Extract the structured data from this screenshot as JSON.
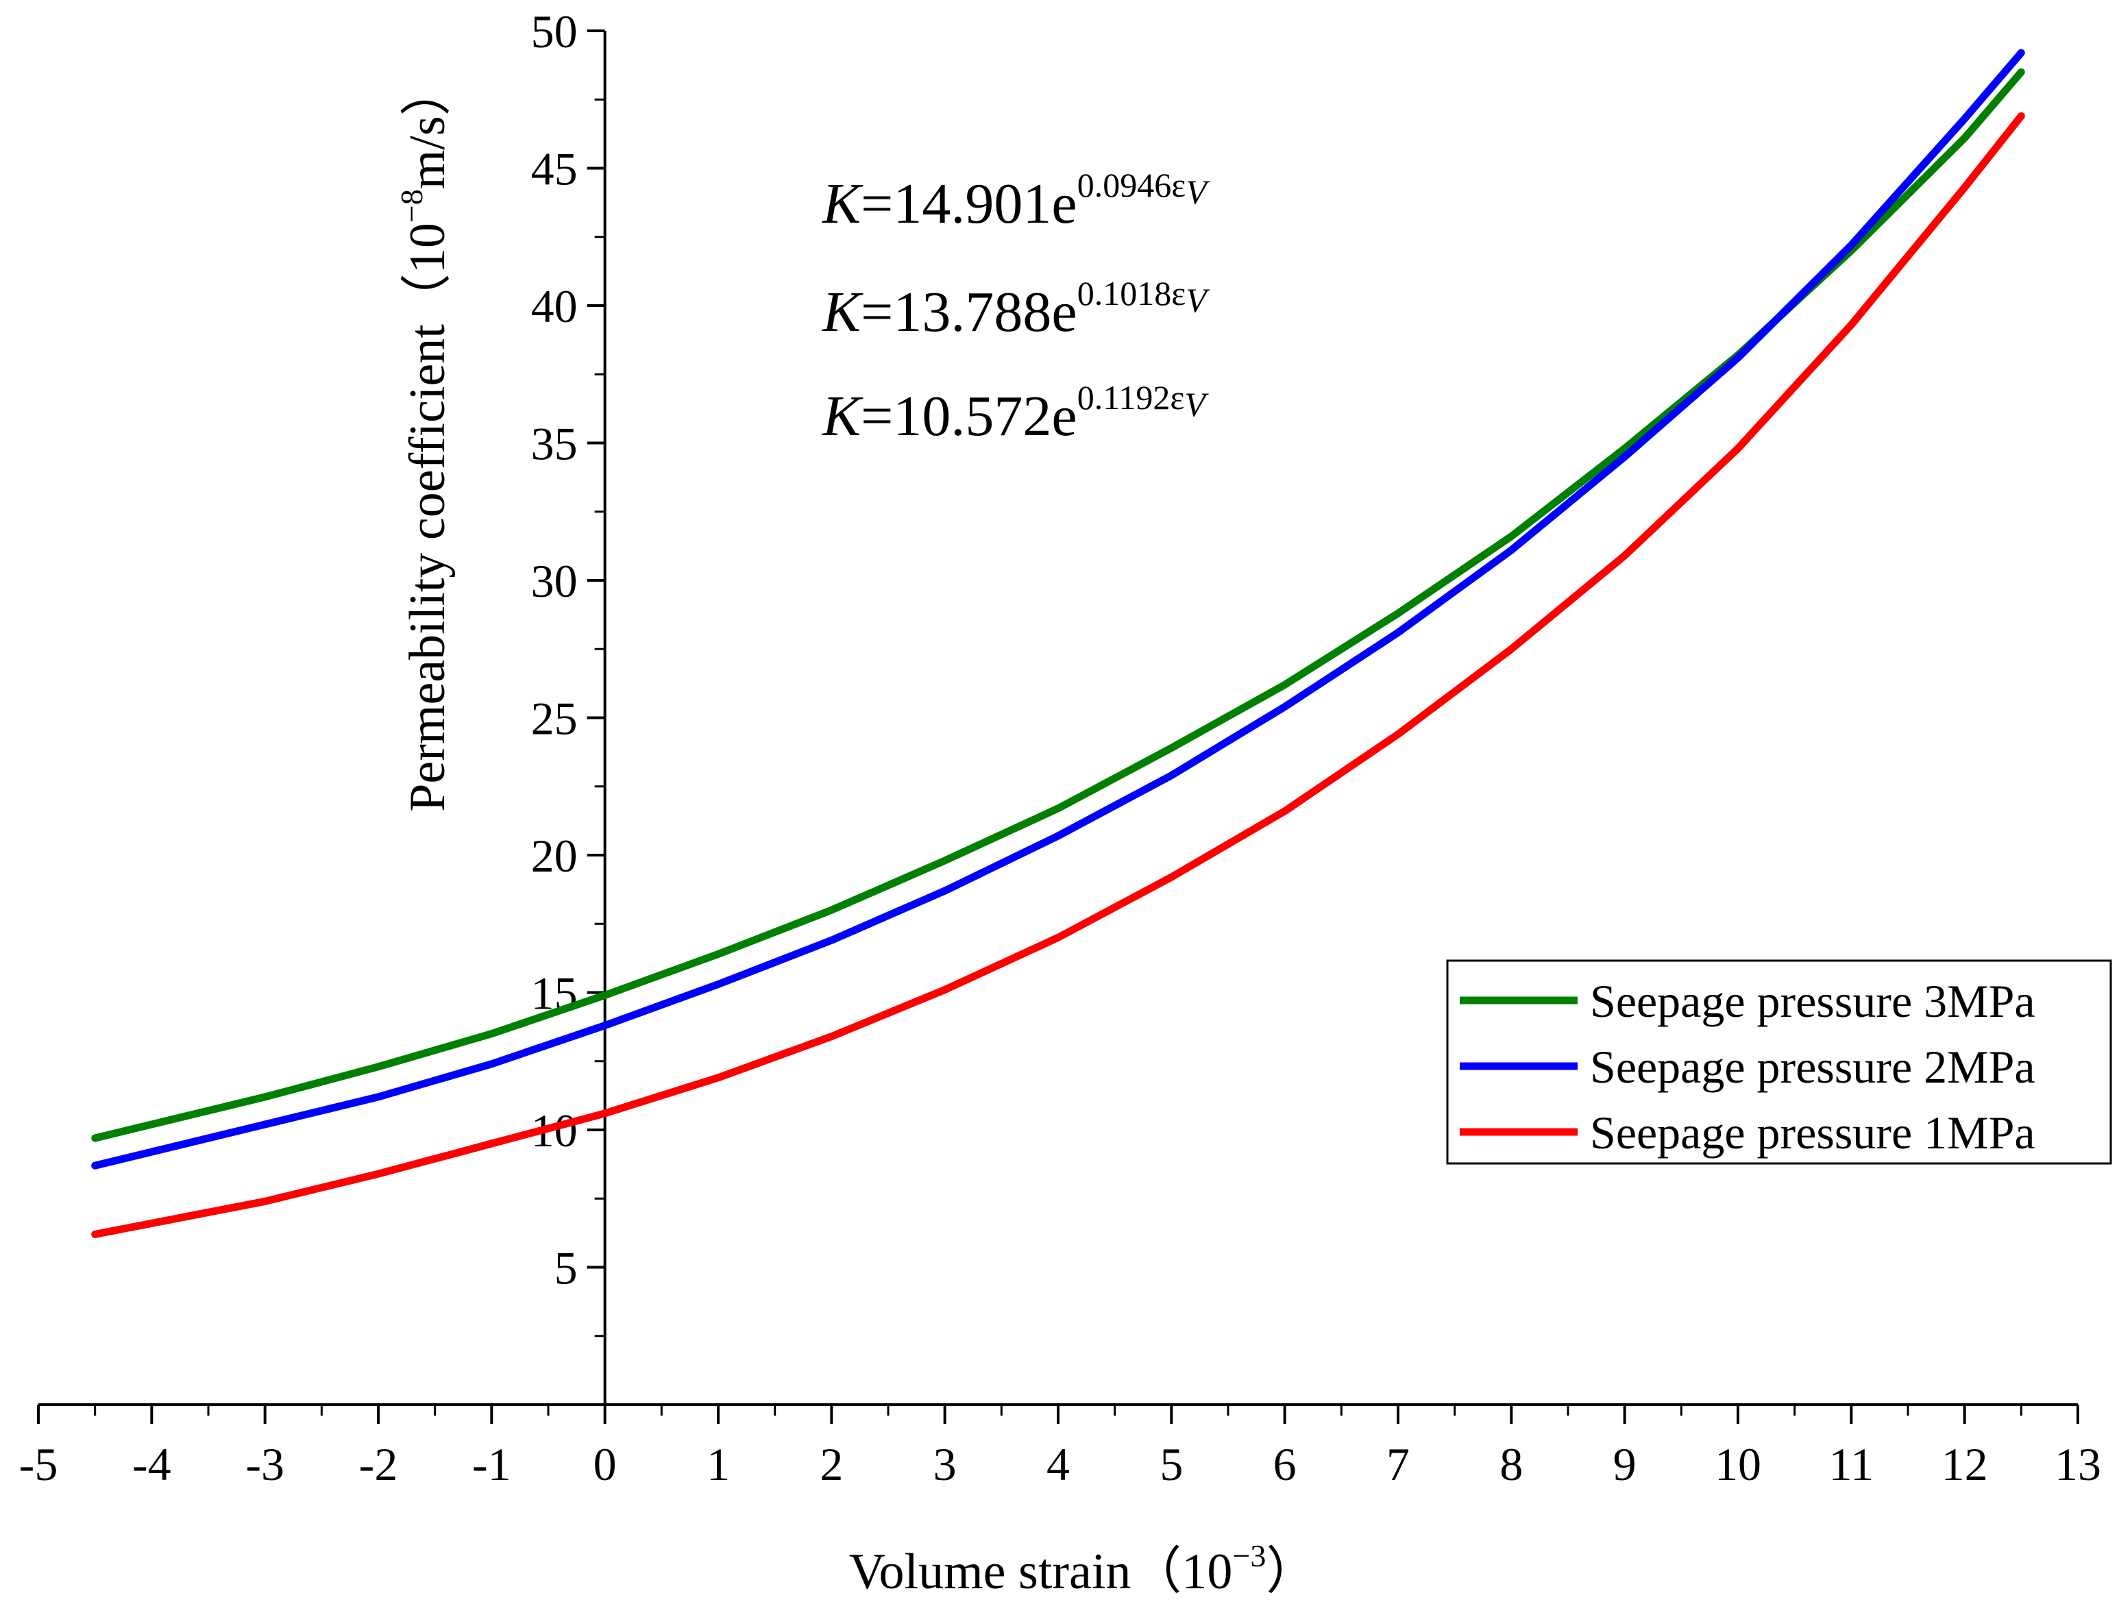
{
  "chart_data": {
    "type": "line",
    "xlabel": "Volume strain（10",
    "xlabel_exp": "−3",
    "xlabel_close": "）",
    "ylabel": "Permeability coefficient（10",
    "ylabel_exp": "−8",
    "ylabel_unit": "m/s）",
    "xlim": [
      -5,
      13
    ],
    "ylim": [
      0,
      50
    ],
    "x_ticks": [
      "-5",
      "-4",
      "-3",
      "-2",
      "-1",
      "0",
      "1",
      "2",
      "3",
      "4",
      "5",
      "6",
      "7",
      "8",
      "9",
      "10",
      "11",
      "12",
      "13"
    ],
    "y_ticks": [
      "5",
      "10",
      "15",
      "20",
      "25",
      "30",
      "35",
      "40",
      "45",
      "50"
    ],
    "x": [
      -4.5,
      -3,
      -2,
      -1,
      0,
      1,
      2,
      3,
      4,
      5,
      6,
      7,
      8,
      9,
      10,
      11,
      12,
      12.5
    ],
    "series": [
      {
        "name": "Seepage pressure 3MPa",
        "color": "#008000",
        "values": [
          9.7,
          11.2,
          12.3,
          13.5,
          14.9,
          16.4,
          18.0,
          19.8,
          21.7,
          23.9,
          26.2,
          28.8,
          31.6,
          34.8,
          38.2,
          42.0,
          46.1,
          48.5
        ]
      },
      {
        "name": "Seepage pressure 2MPa",
        "color": "#0000ff",
        "values": [
          8.7,
          10.2,
          11.2,
          12.4,
          13.8,
          15.3,
          16.9,
          18.7,
          20.7,
          22.9,
          25.4,
          28.1,
          31.1,
          34.5,
          38.1,
          42.2,
          46.8,
          49.2
        ]
      },
      {
        "name": "Seepage pressure 1MPa",
        "color": "#ff0000",
        "values": [
          6.2,
          7.4,
          8.4,
          9.5,
          10.6,
          11.9,
          13.4,
          15.1,
          17.0,
          19.2,
          21.6,
          24.4,
          27.5,
          30.9,
          34.8,
          39.3,
          44.3,
          46.9
        ]
      }
    ],
    "legend_position": "right",
    "grid": false,
    "equations": [
      {
        "prefix": "K",
        "body": "=14.901e",
        "exponent": "0.0946ε",
        "sub": "V",
        "color": "#008000"
      },
      {
        "prefix": "K",
        "body": "=13.788e",
        "exponent": "0.1018ε",
        "sub": "V",
        "color": "#0000ff"
      },
      {
        "prefix": "K",
        "body": "=10.572e",
        "exponent": "0.1192ε",
        "sub": "V",
        "color": "#ff0000"
      }
    ]
  }
}
